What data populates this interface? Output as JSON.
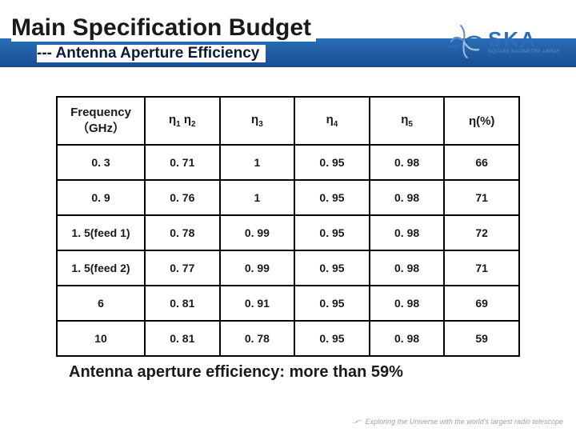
{
  "title": "Main Specification Budget",
  "subtitle": "--- Antenna Aperture Efficiency",
  "logo": {
    "main": "SKA",
    "sub": "SQUARE KILOMETRE ARRAY",
    "swirl_colors": [
      "#9bbde0",
      "#5a8fc8",
      "#2a6db8",
      "#1a4d8f"
    ]
  },
  "table": {
    "border_color": "#000000",
    "text_color": "#1a1a1a",
    "font_size_header": 15,
    "font_size_cell": 14,
    "columns": [
      {
        "label": "Frequency",
        "sublabel": "（GHz）"
      },
      {
        "label_html": "η<sub>1</sub> η<sub>2</sub>"
      },
      {
        "label_html": "η<sub>3</sub>"
      },
      {
        "label_html": "η<sub>4</sub>"
      },
      {
        "label_html": "η<sub>5</sub>"
      },
      {
        "label": "η(%)"
      }
    ],
    "rows": [
      [
        "0. 3",
        "0. 71",
        "1",
        "0. 95",
        "0. 98",
        "66"
      ],
      [
        "0. 9",
        "0. 76",
        "1",
        "0. 95",
        "0. 98",
        "71"
      ],
      [
        "1. 5(feed 1)",
        "0. 78",
        "0. 99",
        "0. 95",
        "0. 98",
        "72"
      ],
      [
        "1. 5(feed 2)",
        "0. 77",
        "0. 99",
        "0. 95",
        "0. 98",
        "71"
      ],
      [
        "6",
        "0. 81",
        "0. 91",
        "0. 95",
        "0. 98",
        "69"
      ],
      [
        "10",
        "0. 81",
        "0. 78",
        "0. 95",
        "0. 98",
        "59"
      ]
    ]
  },
  "caption": "Antenna aperture efficiency:  more than 59%",
  "footer": "Exploring the Universe with the world's largest radio telescope",
  "colors": {
    "header_gradient_top": "#2a6db8",
    "header_gradient_bottom": "#1a4d8f",
    "title_color": "#1a1a1a",
    "subtitle_color": "#0a1a3a",
    "footer_color": "#9aa6b2",
    "background": "#ffffff"
  }
}
